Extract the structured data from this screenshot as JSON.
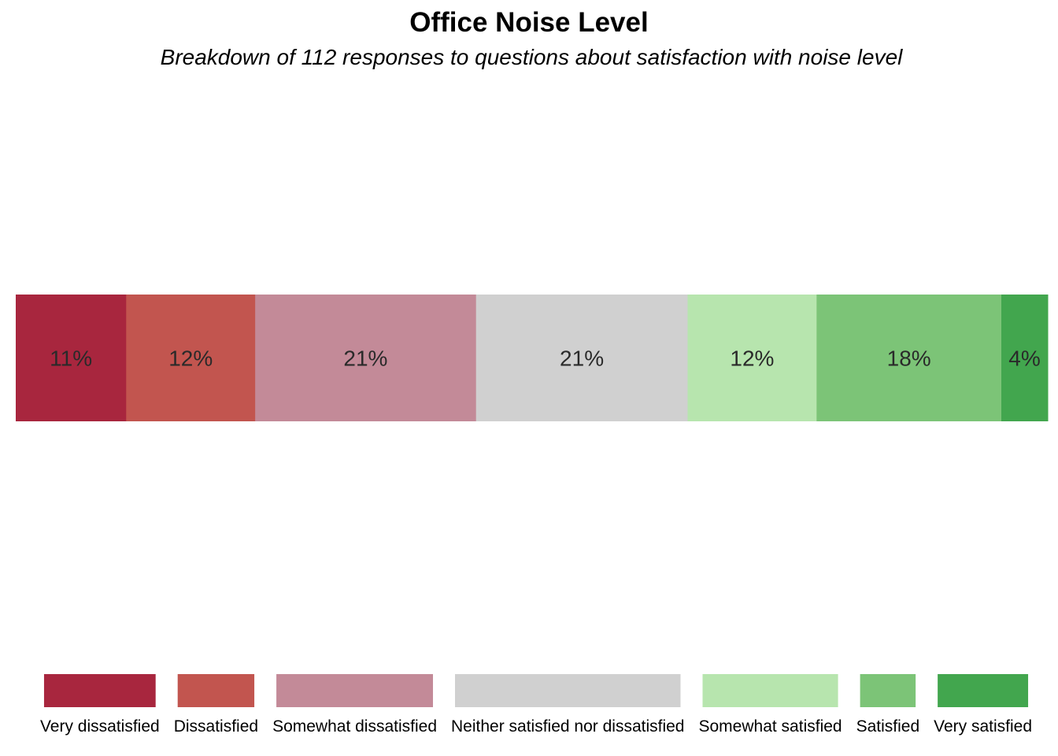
{
  "chart_data": {
    "type": "bar",
    "orientation": "horizontal-stacked",
    "title": "Office Noise Level",
    "subtitle": "Breakdown of 112 responses to questions about satisfaction with noise level",
    "series": [
      {
        "name": "Very dissatisfied",
        "value": 10.7,
        "label": "11%",
        "color": "#A8263E"
      },
      {
        "name": "Dissatisfied",
        "value": 12.5,
        "label": "12%",
        "color": "#C2554F"
      },
      {
        "name": "Somewhat dissatisfied",
        "value": 21.4,
        "label": "21%",
        "color": "#C38A98"
      },
      {
        "name": "Neither satisfied nor dissatisfied",
        "value": 20.5,
        "label": "21%",
        "color": "#D0D0D0"
      },
      {
        "name": "Somewhat satisfied",
        "value": 12.5,
        "label": "12%",
        "color": "#B7E5AE"
      },
      {
        "name": "Satisfied",
        "value": 17.9,
        "label": "18%",
        "color": "#7CC477"
      },
      {
        "name": "Very satisfied",
        "value": 4.5,
        "label": "4%",
        "color": "#42A64E"
      }
    ],
    "xlim": [
      0,
      100
    ],
    "legend_position": "bottom",
    "grid": false
  }
}
